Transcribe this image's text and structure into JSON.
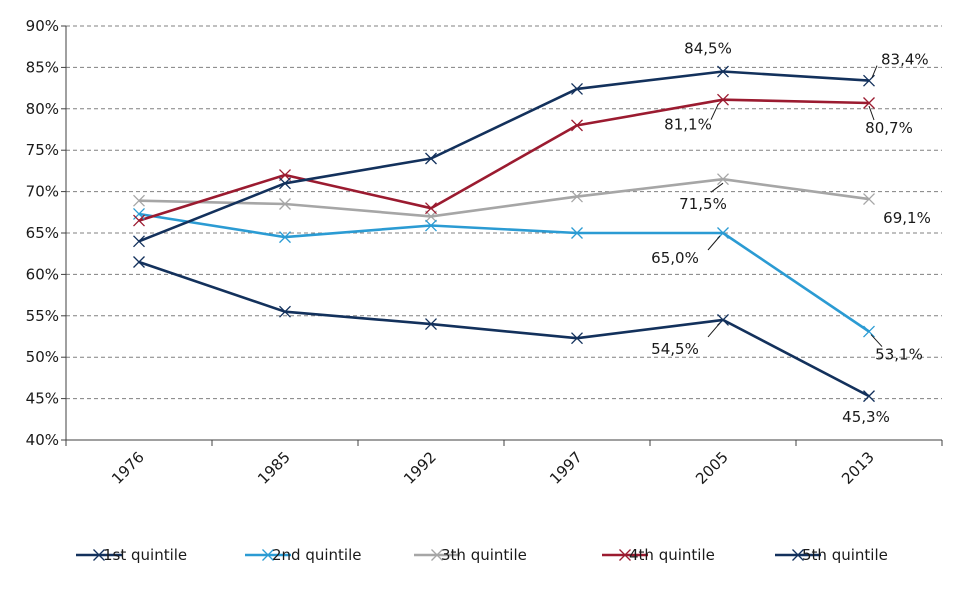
{
  "chart_data": {
    "type": "line",
    "categories": [
      "1976",
      "1985",
      "1992",
      "1997",
      "2005",
      "2013"
    ],
    "ylim": [
      40,
      90
    ],
    "y_ticks": [
      40,
      45,
      50,
      55,
      60,
      65,
      70,
      75,
      80,
      85,
      90
    ],
    "y_tick_labels": [
      "40%",
      "45%",
      "50%",
      "55%",
      "60%",
      "65%",
      "70%",
      "75%",
      "80%",
      "85%",
      "90%"
    ],
    "grid": true,
    "legend_position": "bottom",
    "series": [
      {
        "name": "1st quintile",
        "color": "#13315c",
        "marker": "x",
        "values": [
          61.5,
          55.5,
          54.0,
          52.3,
          54.5,
          45.3
        ]
      },
      {
        "name": "2nd quintile",
        "color": "#2b9bd3",
        "marker": "x",
        "values": [
          67.3,
          64.5,
          65.9,
          65.0,
          65.0,
          53.1
        ]
      },
      {
        "name": "3th quintile",
        "color": "#a6a6a6",
        "marker": "x",
        "values": [
          68.9,
          68.5,
          67.0,
          69.4,
          71.5,
          69.1
        ]
      },
      {
        "name": "4th quintile",
        "color": "#9b1b30",
        "marker": "x",
        "values": [
          66.5,
          72.0,
          68.0,
          78.0,
          81.1,
          80.7
        ]
      },
      {
        "name": "5th quintile",
        "color": "#13315c",
        "marker": "x",
        "values": [
          64.0,
          71.0,
          74.0,
          82.4,
          84.5,
          83.4
        ]
      }
    ],
    "annotations": [
      {
        "text": "84,5%",
        "series": "5th quintile",
        "category": "2005"
      },
      {
        "text": "83,4%",
        "series": "5th quintile",
        "category": "2013"
      },
      {
        "text": "81,1%",
        "series": "4th quintile",
        "category": "2005"
      },
      {
        "text": "80,7%",
        "series": "4th quintile",
        "category": "2013"
      },
      {
        "text": "71,5%",
        "series": "3th quintile",
        "category": "2005"
      },
      {
        "text": "69,1%",
        "series": "3th quintile",
        "category": "2013"
      },
      {
        "text": "65,0%",
        "series": "2nd quintile",
        "category": "2005"
      },
      {
        "text": "53,1%",
        "series": "2nd quintile",
        "category": "2013"
      },
      {
        "text": "54,5%",
        "series": "1st quintile",
        "category": "2005"
      },
      {
        "text": "45,3%",
        "series": "1st quintile",
        "category": "2013"
      }
    ]
  }
}
